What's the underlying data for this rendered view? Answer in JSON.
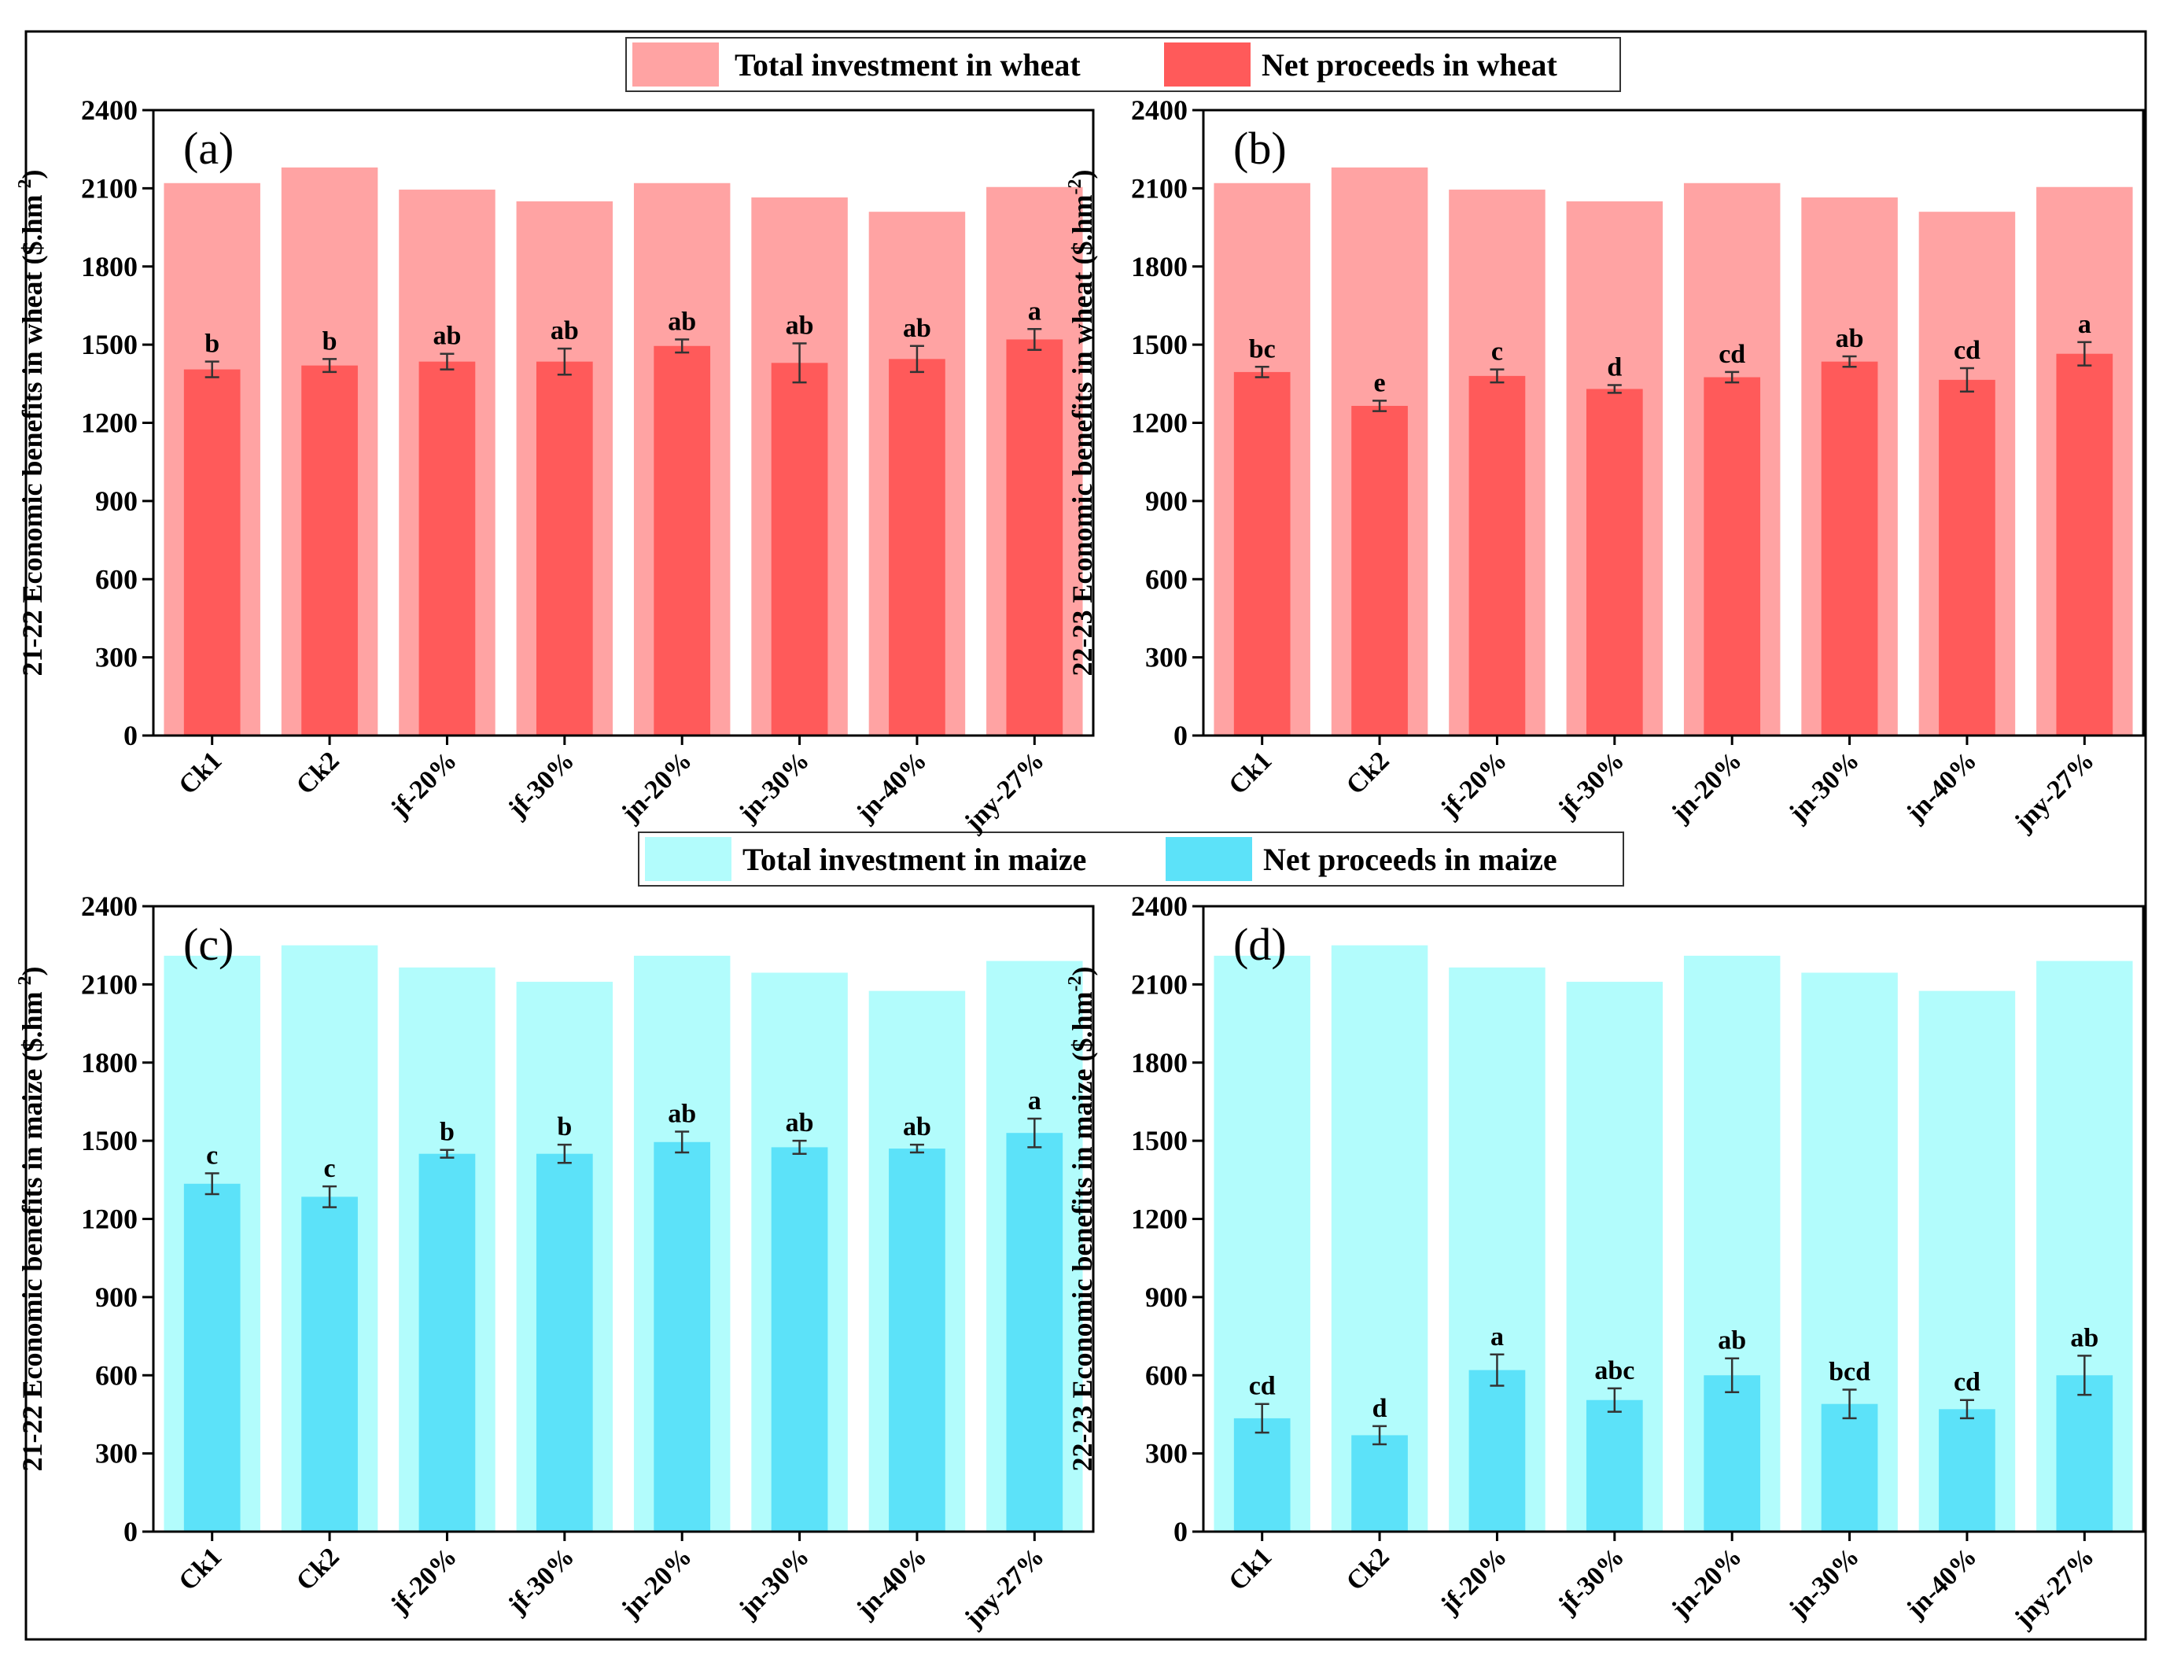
{
  "legends": {
    "wheat": {
      "total_label": "Total investment in wheat",
      "net_label": "Net proceeds in wheat"
    },
    "maize": {
      "total_label": "Total investment in maize",
      "net_label": "Net proceeds in maize"
    }
  },
  "colors": {
    "wheat_total": "#ffa3a3",
    "wheat_net": "#ff5a5a",
    "maize_total": "#b2fcfc",
    "maize_net": "#5ce2f9",
    "frame": "#000000"
  },
  "chart_data": [
    {
      "type": "bar",
      "panel": "(a)",
      "title": "",
      "ylabel_html": "21-22 Economic benefits  in wheat ($.hm-2)",
      "ylabel_main": "21-22 Economic benefits  in wheat ($.hm",
      "ylabel_sup": "-2",
      "ylabel_tail": ")",
      "ylim": [
        0,
        2400
      ],
      "yticks": [
        0,
        300,
        600,
        900,
        1200,
        1500,
        1800,
        2100,
        2400
      ],
      "categories": [
        "Ck1",
        "Ck2",
        "jf-20%",
        "jf-30%",
        "jn-20%",
        "jn-30%",
        "jn-40%",
        "jny-27%"
      ],
      "series": [
        {
          "name": "Total investment in wheat",
          "values": [
            2120,
            2180,
            2095,
            2050,
            2120,
            2065,
            2010,
            2105
          ]
        },
        {
          "name": "Net proceeds in wheat",
          "values": [
            1405,
            1420,
            1435,
            1435,
            1495,
            1430,
            1445,
            1520
          ],
          "errors": [
            30,
            25,
            30,
            50,
            25,
            75,
            50,
            40
          ]
        }
      ],
      "significance": [
        "b",
        "b",
        "ab",
        "ab",
        "ab",
        "ab",
        "ab",
        "a"
      ]
    },
    {
      "type": "bar",
      "panel": "(b)",
      "title": "",
      "ylabel_main": "22-23 Economic benefits in wheat ($.hm",
      "ylabel_sup": "-2",
      "ylabel_tail": ")",
      "ylim": [
        0,
        2400
      ],
      "yticks": [
        0,
        300,
        600,
        900,
        1200,
        1500,
        1800,
        2100,
        2400
      ],
      "categories": [
        "Ck1",
        "Ck2",
        "jf-20%",
        "jf-30%",
        "jn-20%",
        "jn-30%",
        "jn-40%",
        "jny-27%"
      ],
      "series": [
        {
          "name": "Total investment in wheat",
          "values": [
            2120,
            2180,
            2095,
            2050,
            2120,
            2065,
            2010,
            2105
          ]
        },
        {
          "name": "Net proceeds in wheat",
          "values": [
            1395,
            1265,
            1380,
            1330,
            1375,
            1435,
            1365,
            1465
          ],
          "errors": [
            20,
            20,
            25,
            15,
            20,
            20,
            45,
            45
          ]
        }
      ],
      "significance": [
        "bc",
        "e",
        "c",
        "d",
        "cd",
        "ab",
        "cd",
        "a"
      ]
    },
    {
      "type": "bar",
      "panel": "(c)",
      "title": "",
      "ylabel_main": "21-22 Economic benefits in maize ($.hm",
      "ylabel_sup": "-2",
      "ylabel_tail": ")",
      "ylim": [
        0,
        2400
      ],
      "yticks": [
        0,
        300,
        600,
        900,
        1200,
        1500,
        1800,
        2100,
        2400
      ],
      "categories": [
        "Ck1",
        "Ck2",
        "jf-20%",
        "jf-30%",
        "jn-20%",
        "jn-30%",
        "jn-40%",
        "jny-27%"
      ],
      "series": [
        {
          "name": "Total investment in maize",
          "values": [
            2210,
            2250,
            2165,
            2110,
            2210,
            2145,
            2075,
            2190
          ]
        },
        {
          "name": "Net proceeds in maize",
          "values": [
            1335,
            1285,
            1450,
            1450,
            1495,
            1475,
            1470,
            1530
          ],
          "errors": [
            40,
            40,
            15,
            35,
            40,
            25,
            15,
            55
          ]
        }
      ],
      "significance": [
        "c",
        "c",
        "b",
        "b",
        "ab",
        "ab",
        "ab",
        "a"
      ]
    },
    {
      "type": "bar",
      "panel": "(d)",
      "title": "",
      "ylabel_main": "22-23 Economic benefits in maize ($.hm",
      "ylabel_sup": "-2",
      "ylabel_tail": ")",
      "ylim": [
        0,
        2400
      ],
      "yticks": [
        0,
        300,
        600,
        900,
        1200,
        1500,
        1800,
        2100,
        2400
      ],
      "categories": [
        "Ck1",
        "Ck2",
        "jf-20%",
        "jf-30%",
        "jn-20%",
        "jn-30%",
        "jn-40%",
        "jny-27%"
      ],
      "series": [
        {
          "name": "Total investment in maize",
          "values": [
            2210,
            2250,
            2165,
            2110,
            2210,
            2145,
            2075,
            2190
          ]
        },
        {
          "name": "Net proceeds in maize",
          "values": [
            435,
            370,
            620,
            505,
            600,
            490,
            470,
            600
          ],
          "errors": [
            55,
            35,
            60,
            45,
            65,
            55,
            35,
            75
          ]
        }
      ],
      "significance": [
        "cd",
        "d",
        "a",
        "abc",
        "ab",
        "bcd",
        "cd",
        "ab"
      ]
    }
  ]
}
